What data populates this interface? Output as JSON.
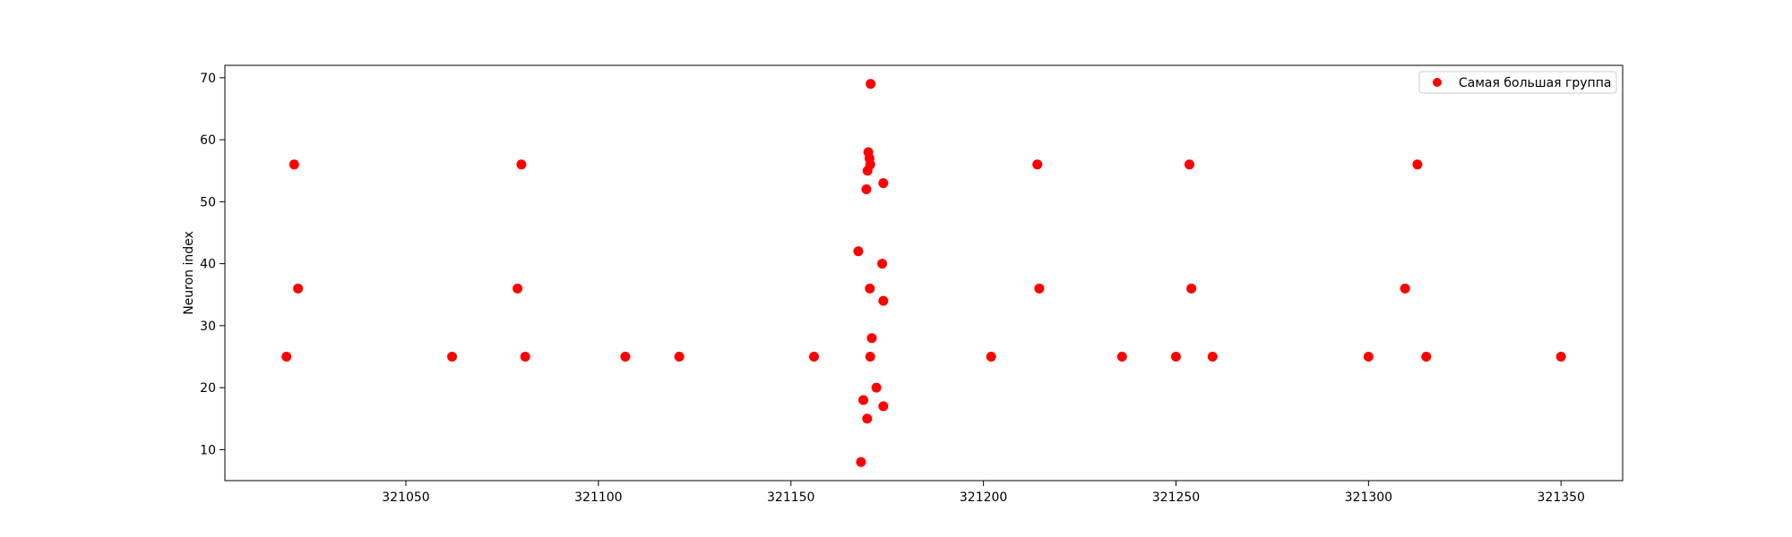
{
  "chart_data": {
    "type": "scatter",
    "title": "",
    "xlabel": "",
    "ylabel": "Neuron index",
    "xlim": [
      321003,
      321366
    ],
    "ylim": [
      5,
      72
    ],
    "xticks": [
      321050,
      321100,
      321150,
      321200,
      321250,
      321300,
      321350
    ],
    "yticks": [
      10,
      20,
      30,
      40,
      50,
      60,
      70
    ],
    "grid": false,
    "legend_position": "top-right",
    "series": [
      {
        "name": "Самая большая группа",
        "color": "#ff0000",
        "points": [
          {
            "x": 321019,
            "y": 25
          },
          {
            "x": 321021,
            "y": 56
          },
          {
            "x": 321022,
            "y": 36
          },
          {
            "x": 321062,
            "y": 25
          },
          {
            "x": 321079,
            "y": 36
          },
          {
            "x": 321080,
            "y": 56
          },
          {
            "x": 321081,
            "y": 25
          },
          {
            "x": 321107,
            "y": 25
          },
          {
            "x": 321121,
            "y": 25
          },
          {
            "x": 321156,
            "y": 25
          },
          {
            "x": 321167.5,
            "y": 42
          },
          {
            "x": 321168.2,
            "y": 8
          },
          {
            "x": 321168.8,
            "y": 18
          },
          {
            "x": 321169.6,
            "y": 52
          },
          {
            "x": 321169.8,
            "y": 15
          },
          {
            "x": 321169.9,
            "y": 55
          },
          {
            "x": 321170.1,
            "y": 58
          },
          {
            "x": 321170.4,
            "y": 57
          },
          {
            "x": 321170.6,
            "y": 56
          },
          {
            "x": 321170.5,
            "y": 36
          },
          {
            "x": 321170.6,
            "y": 25
          },
          {
            "x": 321170.7,
            "y": 69
          },
          {
            "x": 321171,
            "y": 28
          },
          {
            "x": 321172.2,
            "y": 20
          },
          {
            "x": 321173.7,
            "y": 40
          },
          {
            "x": 321174,
            "y": 53
          },
          {
            "x": 321174,
            "y": 34
          },
          {
            "x": 321174,
            "y": 17
          },
          {
            "x": 321202,
            "y": 25
          },
          {
            "x": 321214,
            "y": 56
          },
          {
            "x": 321214.5,
            "y": 36
          },
          {
            "x": 321236,
            "y": 25
          },
          {
            "x": 321250,
            "y": 25
          },
          {
            "x": 321253.5,
            "y": 56
          },
          {
            "x": 321254,
            "y": 36
          },
          {
            "x": 321259.5,
            "y": 25
          },
          {
            "x": 321300,
            "y": 25
          },
          {
            "x": 321309.5,
            "y": 36
          },
          {
            "x": 321312.7,
            "y": 56
          },
          {
            "x": 321315,
            "y": 25
          },
          {
            "x": 321350,
            "y": 25
          }
        ]
      }
    ]
  }
}
